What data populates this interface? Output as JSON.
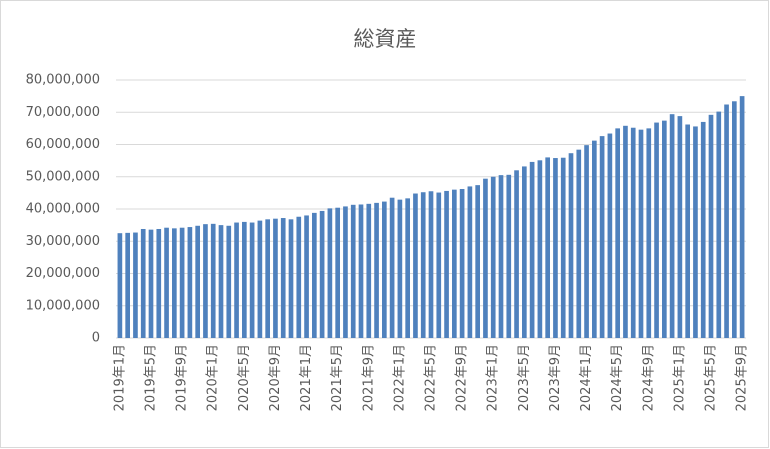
{
  "chart_data": {
    "type": "bar",
    "title": "総資産",
    "categories": [
      "2019年1月",
      null,
      null,
      null,
      "2019年5月",
      null,
      null,
      null,
      "2019年9月",
      null,
      null,
      null,
      "2020年1月",
      null,
      null,
      null,
      "2020年5月",
      null,
      null,
      null,
      "2020年9月",
      null,
      null,
      null,
      "2021年1月",
      null,
      null,
      null,
      "2021年5月",
      null,
      null,
      null,
      "2021年9月",
      null,
      null,
      null,
      "2022年1月",
      null,
      null,
      null,
      "2022年5月",
      null,
      null,
      null,
      "2022年9月",
      null,
      null,
      null,
      "2023年1月",
      null,
      null,
      null,
      "2023年5月",
      null,
      null,
      null,
      "2023年9月",
      null,
      null,
      null,
      "2024年1月",
      null,
      null,
      null,
      "2024年5月",
      null,
      null,
      null,
      "2024年9月",
      null,
      null,
      null,
      "2025年1月",
      null,
      null,
      null,
      "2025年5月",
      null,
      null,
      null,
      "2025年9月"
    ],
    "values": [
      32500000,
      32600000,
      32700000,
      33800000,
      33600000,
      33800000,
      34200000,
      34000000,
      34200000,
      34400000,
      34800000,
      35300000,
      35400000,
      35000000,
      34800000,
      35800000,
      36000000,
      35800000,
      36400000,
      36800000,
      37000000,
      37200000,
      36800000,
      37600000,
      38000000,
      38800000,
      39400000,
      40200000,
      40400000,
      40800000,
      41300000,
      41400000,
      41600000,
      41900000,
      42300000,
      43500000,
      42900000,
      43300000,
      44800000,
      45200000,
      45500000,
      45100000,
      45600000,
      46000000,
      46200000,
      47000000,
      47400000,
      49400000,
      50000000,
      50500000,
      50600000,
      52000000,
      53200000,
      54600000,
      55100000,
      56000000,
      55800000,
      55900000,
      57300000,
      58400000,
      59800000,
      61200000,
      62600000,
      63400000,
      65000000,
      65800000,
      65200000,
      64600000,
      65000000,
      66800000,
      67400000,
      69400000,
      68800000,
      66200000,
      65600000,
      67000000,
      69200000,
      70200000,
      72400000,
      73400000,
      75000000
    ],
    "color": "#4f81bd",
    "ylim": [
      0,
      80000000
    ],
    "yticks": [
      0,
      {
        "value": 10000000,
        "label": "10,000,000"
      },
      {
        "value": 20000000,
        "label": "20,000,000"
      },
      {
        "value": 30000000,
        "label": "30,000,000"
      },
      {
        "value": 40000000,
        "label": "40,000,000"
      },
      {
        "value": 50000000,
        "label": "50,000,000"
      },
      {
        "value": 60000000,
        "label": "60,000,000"
      },
      {
        "value": 70000000,
        "label": "70,000,000"
      },
      {
        "value": 80000000,
        "label": "80,000,000"
      }
    ],
    "grid": true
  }
}
